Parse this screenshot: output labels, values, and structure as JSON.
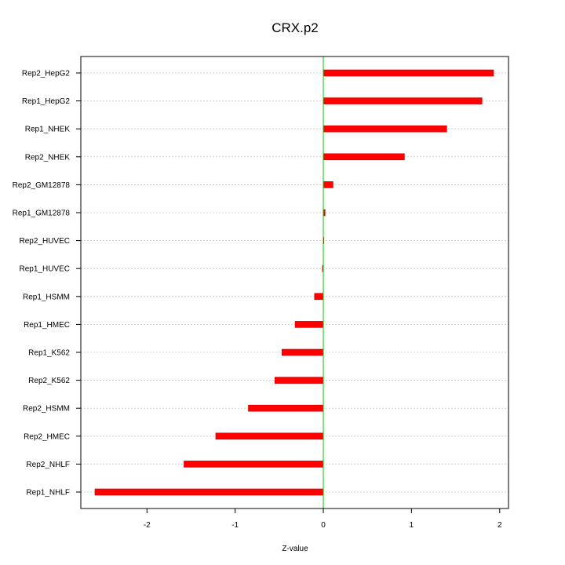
{
  "chart_data": {
    "type": "bar",
    "orientation": "horizontal",
    "title": "CRX.p2",
    "xlabel": "Z-value",
    "ylabel": "",
    "categories": [
      "Rep2_HepG2",
      "Rep1_HepG2",
      "Rep1_NHEK",
      "Rep2_NHEK",
      "Rep2_GM12878",
      "Rep1_GM12878",
      "Rep2_HUVEC",
      "Rep1_HUVEC",
      "Rep1_HSMM",
      "Rep1_HMEC",
      "Rep1_K562",
      "Rep2_K562",
      "Rep2_HSMM",
      "Rep2_HMEC",
      "Rep2_NHLF",
      "Rep1_NHLF"
    ],
    "values": [
      1.93,
      1.8,
      1.4,
      0.92,
      0.11,
      0.02,
      0.005,
      -0.01,
      -0.1,
      -0.32,
      -0.47,
      -0.55,
      -0.85,
      -1.22,
      -1.58,
      -2.59
    ],
    "xlim": [
      -2.75,
      2.1
    ],
    "xticks": [
      -2,
      -1,
      0,
      1,
      2
    ],
    "xtick_labels": [
      "-2",
      "-1",
      "0",
      "1",
      "2"
    ],
    "grid": true,
    "bar_color": "#ff0000",
    "zero_line_color": "#00cc00"
  }
}
